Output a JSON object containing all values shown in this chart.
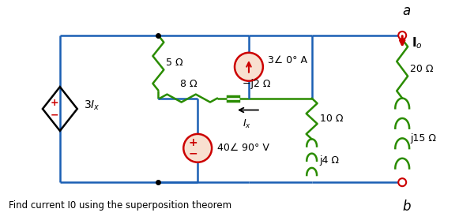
{
  "bg_color": "#ffffff",
  "wire_color": "#1a5fb4",
  "green_color": "#2a8c00",
  "red_color": "#cc0000",
  "black_color": "#000000",
  "figsize": [
    6.0,
    2.79
  ],
  "dpi": 100,
  "title_text": "Find current I0 using the superposition theorem",
  "label_5ohm": "5 Ω",
  "label_8ohm": "8 Ω",
  "label_j2ohm": "−j2 Ω",
  "label_3angle": "3∠ 0° A",
  "label_20ohm": "20 Ω",
  "label_10ohm": "10 Ω",
  "label_j15ohm": "j15 Ω",
  "label_j4ohm": "j4 Ω",
  "label_40angle": "40∠ 90° V"
}
